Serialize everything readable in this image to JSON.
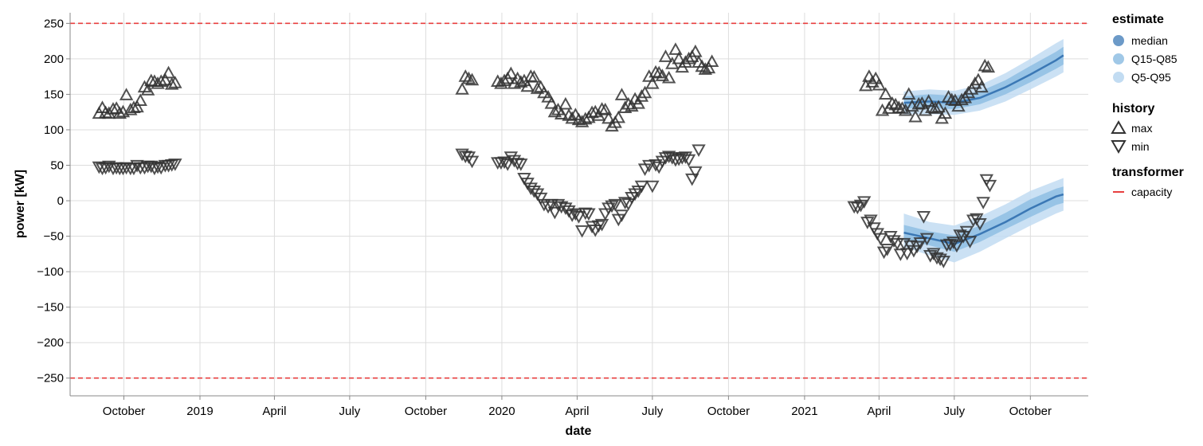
{
  "chart_data": {
    "type": "scatter",
    "xlabel": "date",
    "ylabel": "power [kW]",
    "xlim": [
      "2018-07-28",
      "2021-12-10"
    ],
    "ylim": [
      -275,
      265
    ],
    "y_ticks": [
      250,
      200,
      150,
      100,
      50,
      0,
      -50,
      -100,
      -150,
      -200,
      -250
    ],
    "x_ticks": [
      {
        "date": "2018-10-01",
        "label": "October"
      },
      {
        "date": "2019-01-01",
        "label": "2019"
      },
      {
        "date": "2019-04-01",
        "label": "April"
      },
      {
        "date": "2019-07-01",
        "label": "July"
      },
      {
        "date": "2019-10-01",
        "label": "October"
      },
      {
        "date": "2020-01-01",
        "label": "2020"
      },
      {
        "date": "2020-04-01",
        "label": "April"
      },
      {
        "date": "2020-07-01",
        "label": "July"
      },
      {
        "date": "2020-10-01",
        "label": "October"
      },
      {
        "date": "2021-01-01",
        "label": "2021"
      },
      {
        "date": "2021-04-01",
        "label": "April"
      },
      {
        "date": "2021-07-01",
        "label": "July"
      },
      {
        "date": "2021-10-01",
        "label": "October"
      }
    ],
    "grid": true,
    "legend_position": "right",
    "colors": {
      "history": "#333333",
      "capacity": "#e83f3f",
      "median": "#3b78b5",
      "q15_q85": "#8fbee3",
      "q5_q95": "#c2dcf2"
    },
    "capacity": [
      250,
      -250
    ],
    "history_max": [
      {
        "x": "2018-09-01",
        "y": 123
      },
      {
        "x": "2018-09-05",
        "y": 131
      },
      {
        "x": "2018-09-09",
        "y": 124
      },
      {
        "x": "2018-09-13",
        "y": 123
      },
      {
        "x": "2018-09-18",
        "y": 129
      },
      {
        "x": "2018-09-22",
        "y": 130
      },
      {
        "x": "2018-09-26",
        "y": 123
      },
      {
        "x": "2018-09-30",
        "y": 125
      },
      {
        "x": "2018-10-04",
        "y": 149
      },
      {
        "x": "2018-10-09",
        "y": 128
      },
      {
        "x": "2018-10-13",
        "y": 131
      },
      {
        "x": "2018-10-17",
        "y": 132
      },
      {
        "x": "2018-10-21",
        "y": 141
      },
      {
        "x": "2018-10-26",
        "y": 160
      },
      {
        "x": "2018-10-30",
        "y": 156
      },
      {
        "x": "2018-11-03",
        "y": 169
      },
      {
        "x": "2018-11-07",
        "y": 168
      },
      {
        "x": "2018-11-11",
        "y": 165
      },
      {
        "x": "2018-11-15",
        "y": 168
      },
      {
        "x": "2018-11-20",
        "y": 170
      },
      {
        "x": "2018-11-24",
        "y": 180
      },
      {
        "x": "2018-11-28",
        "y": 164
      },
      {
        "x": "2018-12-02",
        "y": 166
      },
      {
        "x": "2019-11-14",
        "y": 157
      },
      {
        "x": "2019-11-18",
        "y": 175
      },
      {
        "x": "2019-11-22",
        "y": 172
      },
      {
        "x": "2019-11-26",
        "y": 170
      },
      {
        "x": "2019-12-27",
        "y": 168
      },
      {
        "x": "2019-12-31",
        "y": 165
      },
      {
        "x": "2020-01-04",
        "y": 169
      },
      {
        "x": "2020-01-08",
        "y": 172
      },
      {
        "x": "2020-01-12",
        "y": 179
      },
      {
        "x": "2020-01-16",
        "y": 165
      },
      {
        "x": "2020-01-20",
        "y": 172
      },
      {
        "x": "2020-01-24",
        "y": 167
      },
      {
        "x": "2020-01-28",
        "y": 169
      },
      {
        "x": "2020-02-01",
        "y": 161
      },
      {
        "x": "2020-02-05",
        "y": 175
      },
      {
        "x": "2020-02-09",
        "y": 174
      },
      {
        "x": "2020-02-13",
        "y": 158
      },
      {
        "x": "2020-02-17",
        "y": 160
      },
      {
        "x": "2020-02-21",
        "y": 152
      },
      {
        "x": "2020-02-26",
        "y": 146
      },
      {
        "x": "2020-03-01",
        "y": 137
      },
      {
        "x": "2020-03-05",
        "y": 125
      },
      {
        "x": "2020-03-09",
        "y": 128
      },
      {
        "x": "2020-03-13",
        "y": 122
      },
      {
        "x": "2020-03-18",
        "y": 136
      },
      {
        "x": "2020-03-22",
        "y": 120
      },
      {
        "x": "2020-03-26",
        "y": 116
      },
      {
        "x": "2020-03-30",
        "y": 121
      },
      {
        "x": "2020-04-03",
        "y": 114
      },
      {
        "x": "2020-04-07",
        "y": 111
      },
      {
        "x": "2020-04-11",
        "y": 115
      },
      {
        "x": "2020-04-15",
        "y": 117
      },
      {
        "x": "2020-04-19",
        "y": 124
      },
      {
        "x": "2020-04-23",
        "y": 125
      },
      {
        "x": "2020-04-27",
        "y": 120
      },
      {
        "x": "2020-05-01",
        "y": 129
      },
      {
        "x": "2020-05-05",
        "y": 128
      },
      {
        "x": "2020-05-09",
        "y": 116
      },
      {
        "x": "2020-05-13",
        "y": 105
      },
      {
        "x": "2020-05-17",
        "y": 110
      },
      {
        "x": "2020-05-21",
        "y": 117
      },
      {
        "x": "2020-05-25",
        "y": 149
      },
      {
        "x": "2020-05-29",
        "y": 131
      },
      {
        "x": "2020-06-02",
        "y": 136
      },
      {
        "x": "2020-06-06",
        "y": 133
      },
      {
        "x": "2020-06-10",
        "y": 143
      },
      {
        "x": "2020-06-14",
        "y": 137
      },
      {
        "x": "2020-06-18",
        "y": 147
      },
      {
        "x": "2020-06-22",
        "y": 152
      },
      {
        "x": "2020-06-27",
        "y": 175
      },
      {
        "x": "2020-07-01",
        "y": 165
      },
      {
        "x": "2020-07-05",
        "y": 181
      },
      {
        "x": "2020-07-09",
        "y": 180
      },
      {
        "x": "2020-07-13",
        "y": 176
      },
      {
        "x": "2020-07-17",
        "y": 203
      },
      {
        "x": "2020-07-21",
        "y": 173
      },
      {
        "x": "2020-07-25",
        "y": 193
      },
      {
        "x": "2020-07-29",
        "y": 213
      },
      {
        "x": "2020-08-02",
        "y": 200
      },
      {
        "x": "2020-08-06",
        "y": 188
      },
      {
        "x": "2020-08-10",
        "y": 195
      },
      {
        "x": "2020-08-14",
        "y": 200
      },
      {
        "x": "2020-08-18",
        "y": 203
      },
      {
        "x": "2020-08-22",
        "y": 210
      },
      {
        "x": "2020-08-26",
        "y": 195
      },
      {
        "x": "2020-08-30",
        "y": 189
      },
      {
        "x": "2020-09-03",
        "y": 185
      },
      {
        "x": "2020-09-07",
        "y": 187
      },
      {
        "x": "2020-09-11",
        "y": 196
      },
      {
        "x": "2021-03-16",
        "y": 162
      },
      {
        "x": "2021-03-20",
        "y": 175
      },
      {
        "x": "2021-03-24",
        "y": 167
      },
      {
        "x": "2021-03-28",
        "y": 172
      },
      {
        "x": "2021-04-01",
        "y": 163
      },
      {
        "x": "2021-04-05",
        "y": 127
      },
      {
        "x": "2021-04-09",
        "y": 150
      },
      {
        "x": "2021-04-13",
        "y": 130
      },
      {
        "x": "2021-04-17",
        "y": 137
      },
      {
        "x": "2021-04-21",
        "y": 135
      },
      {
        "x": "2021-04-25",
        "y": 131
      },
      {
        "x": "2021-04-29",
        "y": 130
      },
      {
        "x": "2021-05-03",
        "y": 127
      },
      {
        "x": "2021-05-07",
        "y": 150
      },
      {
        "x": "2021-05-11",
        "y": 133
      },
      {
        "x": "2021-05-15",
        "y": 118
      },
      {
        "x": "2021-05-19",
        "y": 136
      },
      {
        "x": "2021-05-23",
        "y": 137
      },
      {
        "x": "2021-05-27",
        "y": 127
      },
      {
        "x": "2021-05-31",
        "y": 140
      },
      {
        "x": "2021-06-04",
        "y": 131
      },
      {
        "x": "2021-06-08",
        "y": 130
      },
      {
        "x": "2021-06-12",
        "y": 132
      },
      {
        "x": "2021-06-16",
        "y": 116
      },
      {
        "x": "2021-06-20",
        "y": 123
      },
      {
        "x": "2021-06-24",
        "y": 146
      },
      {
        "x": "2021-06-28",
        "y": 142
      },
      {
        "x": "2021-07-02",
        "y": 141
      },
      {
        "x": "2021-07-06",
        "y": 133
      },
      {
        "x": "2021-07-10",
        "y": 142
      },
      {
        "x": "2021-07-14",
        "y": 145
      },
      {
        "x": "2021-07-18",
        "y": 152
      },
      {
        "x": "2021-07-22",
        "y": 157
      },
      {
        "x": "2021-07-26",
        "y": 165
      },
      {
        "x": "2021-07-30",
        "y": 170
      },
      {
        "x": "2021-08-03",
        "y": 160
      },
      {
        "x": "2021-08-07",
        "y": 190
      },
      {
        "x": "2021-08-11",
        "y": 188
      }
    ],
    "history_min": [
      {
        "x": "2018-09-01",
        "y": 48
      },
      {
        "x": "2018-09-05",
        "y": 46
      },
      {
        "x": "2018-09-09",
        "y": 47
      },
      {
        "x": "2018-09-13",
        "y": 49
      },
      {
        "x": "2018-09-18",
        "y": 46
      },
      {
        "x": "2018-09-22",
        "y": 47
      },
      {
        "x": "2018-09-26",
        "y": 46
      },
      {
        "x": "2018-09-30",
        "y": 46
      },
      {
        "x": "2018-10-04",
        "y": 47
      },
      {
        "x": "2018-10-09",
        "y": 46
      },
      {
        "x": "2018-10-13",
        "y": 46
      },
      {
        "x": "2018-10-17",
        "y": 50
      },
      {
        "x": "2018-10-21",
        "y": 47
      },
      {
        "x": "2018-10-26",
        "y": 47
      },
      {
        "x": "2018-10-30",
        "y": 49
      },
      {
        "x": "2018-11-03",
        "y": 49
      },
      {
        "x": "2018-11-07",
        "y": 46
      },
      {
        "x": "2018-11-11",
        "y": 48
      },
      {
        "x": "2018-11-15",
        "y": 47
      },
      {
        "x": "2018-11-20",
        "y": 50
      },
      {
        "x": "2018-11-24",
        "y": 50
      },
      {
        "x": "2018-11-28",
        "y": 51
      },
      {
        "x": "2018-12-02",
        "y": 52
      },
      {
        "x": "2019-11-14",
        "y": 66
      },
      {
        "x": "2019-11-18",
        "y": 63
      },
      {
        "x": "2019-11-22",
        "y": 62
      },
      {
        "x": "2019-11-26",
        "y": 56
      },
      {
        "x": "2019-12-27",
        "y": 54
      },
      {
        "x": "2019-12-31",
        "y": 54
      },
      {
        "x": "2020-01-04",
        "y": 55
      },
      {
        "x": "2020-01-08",
        "y": 52
      },
      {
        "x": "2020-01-12",
        "y": 62
      },
      {
        "x": "2020-01-16",
        "y": 57
      },
      {
        "x": "2020-01-20",
        "y": 53
      },
      {
        "x": "2020-01-24",
        "y": 52
      },
      {
        "x": "2020-01-28",
        "y": 32
      },
      {
        "x": "2020-02-01",
        "y": 25
      },
      {
        "x": "2020-02-05",
        "y": 18
      },
      {
        "x": "2020-02-09",
        "y": 14
      },
      {
        "x": "2020-02-13",
        "y": 10
      },
      {
        "x": "2020-02-17",
        "y": 4
      },
      {
        "x": "2020-02-21",
        "y": -5
      },
      {
        "x": "2020-02-26",
        "y": -8
      },
      {
        "x": "2020-03-01",
        "y": -5
      },
      {
        "x": "2020-03-05",
        "y": -16
      },
      {
        "x": "2020-03-09",
        "y": -5
      },
      {
        "x": "2020-03-13",
        "y": -8
      },
      {
        "x": "2020-03-18",
        "y": -10
      },
      {
        "x": "2020-03-22",
        "y": -14
      },
      {
        "x": "2020-03-26",
        "y": -20
      },
      {
        "x": "2020-03-30",
        "y": -18
      },
      {
        "x": "2020-04-03",
        "y": -22
      },
      {
        "x": "2020-04-07",
        "y": -42
      },
      {
        "x": "2020-04-11",
        "y": -17
      },
      {
        "x": "2020-04-15",
        "y": -18
      },
      {
        "x": "2020-04-19",
        "y": -36
      },
      {
        "x": "2020-04-23",
        "y": -41
      },
      {
        "x": "2020-04-27",
        "y": -35
      },
      {
        "x": "2020-05-01",
        "y": -33
      },
      {
        "x": "2020-05-05",
        "y": -18
      },
      {
        "x": "2020-05-09",
        "y": -10
      },
      {
        "x": "2020-05-13",
        "y": -7
      },
      {
        "x": "2020-05-17",
        "y": -5
      },
      {
        "x": "2020-05-21",
        "y": -26
      },
      {
        "x": "2020-05-25",
        "y": -20
      },
      {
        "x": "2020-05-29",
        "y": -2
      },
      {
        "x": "2020-06-02",
        "y": -4
      },
      {
        "x": "2020-06-06",
        "y": 5
      },
      {
        "x": "2020-06-10",
        "y": 10
      },
      {
        "x": "2020-06-14",
        "y": 14
      },
      {
        "x": "2020-06-18",
        "y": 21
      },
      {
        "x": "2020-06-22",
        "y": 45
      },
      {
        "x": "2020-06-27",
        "y": 50
      },
      {
        "x": "2020-07-01",
        "y": 21
      },
      {
        "x": "2020-07-05",
        "y": 51
      },
      {
        "x": "2020-07-09",
        "y": 48
      },
      {
        "x": "2020-07-13",
        "y": 56
      },
      {
        "x": "2020-07-17",
        "y": 61
      },
      {
        "x": "2020-07-21",
        "y": 63
      },
      {
        "x": "2020-07-25",
        "y": 61
      },
      {
        "x": "2020-07-29",
        "y": 58
      },
      {
        "x": "2020-08-02",
        "y": 59
      },
      {
        "x": "2020-08-06",
        "y": 61
      },
      {
        "x": "2020-08-10",
        "y": 62
      },
      {
        "x": "2020-08-14",
        "y": 58
      },
      {
        "x": "2020-08-18",
        "y": 31
      },
      {
        "x": "2020-08-22",
        "y": 41
      },
      {
        "x": "2020-08-26",
        "y": 72
      },
      {
        "x": "2021-03-02",
        "y": -8
      },
      {
        "x": "2021-03-06",
        "y": -9
      },
      {
        "x": "2021-03-10",
        "y": -6
      },
      {
        "x": "2021-03-14",
        "y": -1
      },
      {
        "x": "2021-03-18",
        "y": -30
      },
      {
        "x": "2021-03-22",
        "y": -27
      },
      {
        "x": "2021-03-26",
        "y": -38
      },
      {
        "x": "2021-03-30",
        "y": -46
      },
      {
        "x": "2021-04-03",
        "y": -53
      },
      {
        "x": "2021-04-07",
        "y": -72
      },
      {
        "x": "2021-04-11",
        "y": -68
      },
      {
        "x": "2021-04-15",
        "y": -50
      },
      {
        "x": "2021-04-19",
        "y": -56
      },
      {
        "x": "2021-04-23",
        "y": -60
      },
      {
        "x": "2021-04-27",
        "y": -75
      },
      {
        "x": "2021-05-01",
        "y": -60
      },
      {
        "x": "2021-05-05",
        "y": -74
      },
      {
        "x": "2021-05-09",
        "y": -63
      },
      {
        "x": "2021-05-13",
        "y": -70
      },
      {
        "x": "2021-05-17",
        "y": -64
      },
      {
        "x": "2021-05-21",
        "y": -59
      },
      {
        "x": "2021-05-25",
        "y": -22
      },
      {
        "x": "2021-05-29",
        "y": -53
      },
      {
        "x": "2021-06-02",
        "y": -77
      },
      {
        "x": "2021-06-06",
        "y": -74
      },
      {
        "x": "2021-06-10",
        "y": -80
      },
      {
        "x": "2021-06-14",
        "y": -82
      },
      {
        "x": "2021-06-18",
        "y": -85
      },
      {
        "x": "2021-06-22",
        "y": -62
      },
      {
        "x": "2021-06-26",
        "y": -61
      },
      {
        "x": "2021-06-30",
        "y": -58
      },
      {
        "x": "2021-07-04",
        "y": -63
      },
      {
        "x": "2021-07-08",
        "y": -48
      },
      {
        "x": "2021-07-12",
        "y": -50
      },
      {
        "x": "2021-07-16",
        "y": -43
      },
      {
        "x": "2021-07-20",
        "y": -57
      },
      {
        "x": "2021-07-24",
        "y": -27
      },
      {
        "x": "2021-07-28",
        "y": -25
      },
      {
        "x": "2021-08-01",
        "y": -32
      },
      {
        "x": "2021-08-05",
        "y": -2
      },
      {
        "x": "2021-08-09",
        "y": 30
      },
      {
        "x": "2021-08-13",
        "y": 22
      }
    ],
    "forecast": [
      {
        "x": "2021-05-01",
        "median": 138,
        "q15": 130,
        "q85": 147,
        "q5": 122,
        "q95": 154,
        "min_median": -45,
        "min_q15": -55,
        "min_q85": -34,
        "min_q5": -65,
        "min_q95": -18
      },
      {
        "x": "2021-06-01",
        "median": 140,
        "q15": 131,
        "q85": 150,
        "q5": 122,
        "q95": 157,
        "min_median": -53,
        "min_q15": -63,
        "min_q85": -43,
        "min_q5": -77,
        "min_q95": -30
      },
      {
        "x": "2021-07-01",
        "median": 138,
        "q15": 129,
        "q85": 148,
        "q5": 121,
        "q95": 155,
        "min_median": -61,
        "min_q15": -72,
        "min_q85": -49,
        "min_q5": -87,
        "min_q95": -35
      },
      {
        "x": "2021-08-01",
        "median": 145,
        "q15": 136,
        "q85": 154,
        "q5": 127,
        "q95": 163,
        "min_median": -47,
        "min_q15": -58,
        "min_q85": -35,
        "min_q5": -72,
        "min_q95": -22
      },
      {
        "x": "2021-09-01",
        "median": 160,
        "q15": 150,
        "q85": 170,
        "q5": 140,
        "q95": 180,
        "min_median": -30,
        "min_q15": -40,
        "min_q85": -17,
        "min_q5": -53,
        "min_q95": -5
      },
      {
        "x": "2021-10-01",
        "median": 178,
        "q15": 167,
        "q85": 190,
        "q5": 157,
        "q95": 200,
        "min_median": -11,
        "min_q15": -23,
        "min_q85": 2,
        "min_q5": -35,
        "min_q95": 14
      },
      {
        "x": "2021-11-01",
        "median": 198,
        "q15": 186,
        "q85": 210,
        "q5": 175,
        "q95": 222,
        "min_median": 6,
        "min_q15": -6,
        "min_q85": 17,
        "min_q5": -18,
        "min_q95": 28
      },
      {
        "x": "2021-11-10",
        "median": 205,
        "q15": 192,
        "q85": 217,
        "q5": 181,
        "q95": 228,
        "min_median": 9,
        "min_q15": -3,
        "min_q85": 20,
        "min_q5": -14,
        "min_q95": 32
      }
    ]
  },
  "legend": {
    "estimate": {
      "title": "estimate",
      "items": [
        "median",
        "Q15-Q85",
        "Q5-Q95"
      ]
    },
    "history": {
      "title": "history",
      "items": [
        "max",
        "min"
      ]
    },
    "transformer": {
      "title": "transformer",
      "items": [
        "capacity"
      ]
    }
  }
}
